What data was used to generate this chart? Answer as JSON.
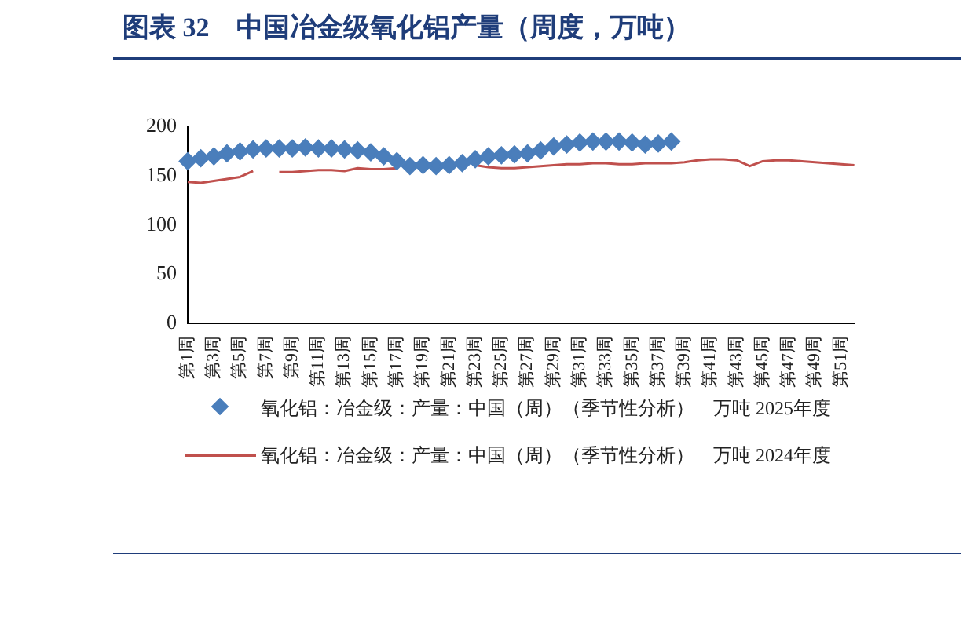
{
  "chart_data": {
    "type": "line",
    "title": "图表 32　中国冶金级氧化铝产量（周度，万吨）",
    "categories": [
      "第1周",
      null,
      "第3周",
      null,
      "第5周",
      null,
      "第7周",
      null,
      "第9周",
      null,
      "第11周",
      null,
      "第13周",
      null,
      "第15周",
      null,
      "第17周",
      null,
      "第19周",
      null,
      "第21周",
      null,
      "第23周",
      null,
      "第25周",
      null,
      "第27周",
      null,
      "第29周",
      null,
      "第31周",
      null,
      "第33周",
      null,
      "第35周",
      null,
      "第37周",
      null,
      "第39周",
      null,
      "第41周",
      null,
      "第43周",
      null,
      "第45周",
      null,
      "第47周",
      null,
      "第49周",
      null,
      "第51周",
      null
    ],
    "series": [
      {
        "name": "氧化铝：冶金级：产量：中国（周）（季节性分析）　万吨 2025年度",
        "color": "#4a7ebb",
        "type": "scatter",
        "marker": "diamond",
        "values": [
          165,
          168,
          170,
          173,
          175,
          177,
          178,
          178,
          178,
          179,
          178,
          178,
          177,
          176,
          174,
          170,
          165,
          160,
          161,
          160,
          161,
          163,
          167,
          170,
          171,
          172,
          173,
          176,
          180,
          182,
          184,
          185,
          185,
          185,
          184,
          182,
          183,
          185,
          null,
          null,
          null,
          null,
          null,
          null,
          null,
          null,
          null,
          null,
          null,
          null,
          null,
          null
        ]
      },
      {
        "name": "氧化铝：冶金级：产量：中国（周）（季节性分析）　万吨 2024年度",
        "color": "#c0504d",
        "marker": "none",
        "values": [
          144,
          143,
          145,
          147,
          149,
          155,
          null,
          154,
          154,
          155,
          156,
          156,
          155,
          158,
          157,
          157,
          158,
          null,
          null,
          null,
          null,
          null,
          161,
          159,
          158,
          158,
          159,
          160,
          161,
          162,
          162,
          163,
          163,
          162,
          162,
          163,
          163,
          163,
          164,
          166,
          167,
          167,
          166,
          160,
          165,
          166,
          166,
          165,
          164,
          163,
          162,
          161
        ]
      }
    ],
    "ylim": [
      0,
      200
    ],
    "yticks": [
      0,
      50,
      100,
      150,
      200
    ],
    "grid": false,
    "legend": "bottom"
  }
}
